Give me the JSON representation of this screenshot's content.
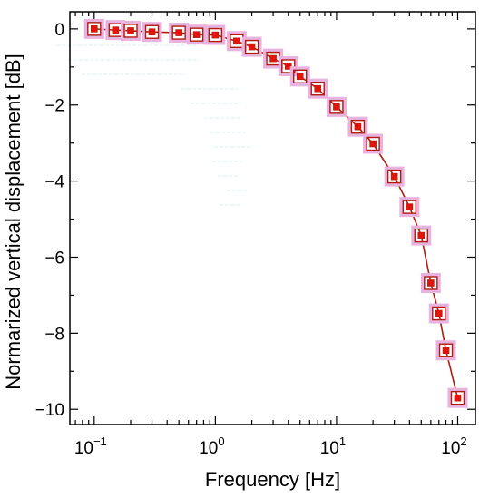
{
  "chart_data": {
    "type": "line",
    "xlabel": "Frequency [Hz]",
    "ylabel": "Normarized vertical displacement [dB]",
    "xscale": "log",
    "xlim": [
      0.063,
      140
    ],
    "ylim": [
      -10.4,
      0.45
    ],
    "x_ticks": [
      {
        "base": "10",
        "exp": "−1",
        "value": 0.1
      },
      {
        "base": "10",
        "exp": "0",
        "value": 1
      },
      {
        "base": "10",
        "exp": "1",
        "value": 10
      },
      {
        "base": "10",
        "exp": "2",
        "value": 100
      }
    ],
    "y_ticks": [
      {
        "label": "0",
        "value": 0
      },
      {
        "label": "−2",
        "value": -2
      },
      {
        "label": "−4",
        "value": -4
      },
      {
        "label": "−6",
        "value": -6
      },
      {
        "label": "−8",
        "value": -8
      },
      {
        "label": "−10",
        "value": -10
      }
    ],
    "grid": false,
    "legend": "none",
    "series": [
      {
        "marker": "filled square inside open square",
        "color": "#b11c10",
        "marker_fill": "#e3150b",
        "halo_color": "#e9b3df",
        "x": [
          0.1,
          0.15,
          0.2,
          0.3,
          0.5,
          0.7,
          1,
          1.5,
          2,
          3,
          4,
          5,
          7,
          10,
          15,
          20,
          30,
          40,
          50,
          60,
          70,
          80,
          100
        ],
        "y": [
          0.0,
          -0.03,
          -0.05,
          -0.08,
          -0.1,
          -0.15,
          -0.16,
          -0.32,
          -0.47,
          -0.78,
          -0.98,
          -1.25,
          -1.57,
          -2.05,
          -2.57,
          -3.02,
          -3.88,
          -4.68,
          -5.43,
          -6.68,
          -7.48,
          -8.45,
          -9.7
        ]
      }
    ]
  }
}
